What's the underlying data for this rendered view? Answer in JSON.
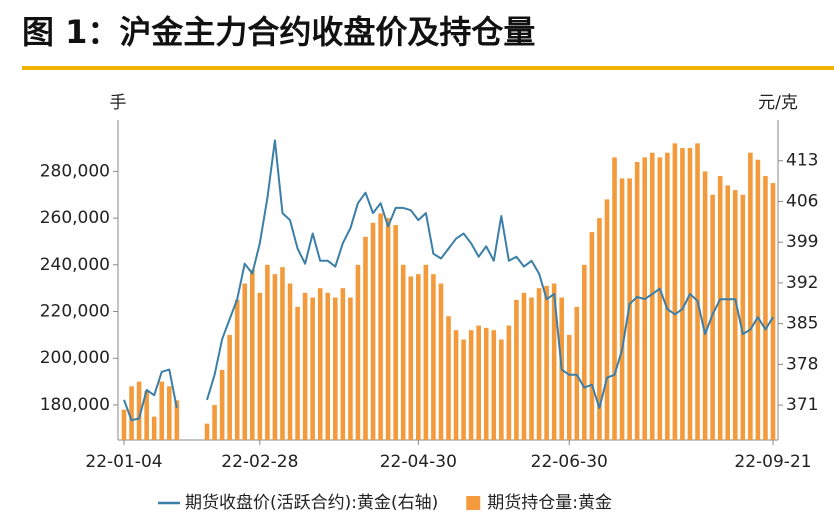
{
  "chart_data": {
    "type": "bar",
    "title": "图 1：沪金主力合约收盘价及持仓量",
    "y_label": "手",
    "y2_label": "元/克",
    "categories": [
      "22-01-04",
      null,
      null,
      null,
      null,
      null,
      null,
      null,
      null,
      null,
      null,
      null,
      null,
      null,
      null,
      null,
      null,
      null,
      "22-02-28",
      null,
      null,
      null,
      null,
      null,
      null,
      null,
      null,
      null,
      null,
      null,
      null,
      null,
      null,
      null,
      null,
      null,
      null,
      null,
      null,
      "22-04-30",
      null,
      null,
      null,
      null,
      null,
      null,
      null,
      null,
      null,
      null,
      null,
      null,
      null,
      null,
      null,
      null,
      null,
      null,
      null,
      "22-06-30",
      null,
      null,
      null,
      null,
      null,
      null,
      null,
      null,
      null,
      null,
      null,
      null,
      null,
      null,
      null,
      null,
      null,
      null,
      null,
      null,
      null,
      null,
      null,
      null,
      null,
      null,
      "22-09-21"
    ],
    "series": [
      {
        "name": "期货收盘价(活跃合约):黄金(右轴)",
        "type": "line",
        "axis": "y2",
        "color": "#3b7fa8",
        "values": [
          371.9,
          368.4,
          368.7,
          373.6,
          372.7,
          376.7,
          377.1,
          370.5,
          null,
          null,
          null,
          371.9,
          376.2,
          382.3,
          385.8,
          389.2,
          395.3,
          393.6,
          398.8,
          406.6,
          416.5,
          404.0,
          402.8,
          397.9,
          395.3,
          400.5,
          395.8,
          395.8,
          394.8,
          398.8,
          401.4,
          405.7,
          407.5,
          404.0,
          405.7,
          401.7,
          404.9,
          404.9,
          404.5,
          402.8,
          404.0,
          397.0,
          396.2,
          397.9,
          399.6,
          400.5,
          398.8,
          396.5,
          398.3,
          395.8,
          403.5,
          395.8,
          396.5,
          394.8,
          395.8,
          393.6,
          389.2,
          390.1,
          377.1,
          376.2,
          376.2,
          374.0,
          374.5,
          370.5,
          375.7,
          376.2,
          380.5,
          388.4,
          389.6,
          389.2,
          390.1,
          391.0,
          387.5,
          386.6,
          387.5,
          390.1,
          388.9,
          383.2,
          386.6,
          389.2,
          389.2,
          389.2,
          383.2,
          384.0,
          386.1,
          384.0,
          386.1
        ]
      },
      {
        "name": "期货持仓量:黄金",
        "type": "bar",
        "axis": "y",
        "color": "#f39b3c",
        "values": [
          178000,
          188000,
          190000,
          186000,
          175000,
          190000,
          188000,
          182000,
          null,
          null,
          null,
          172000,
          180000,
          195000,
          210000,
          225000,
          232000,
          238000,
          228000,
          240000,
          236000,
          239000,
          232000,
          222000,
          228000,
          226000,
          230000,
          228000,
          226000,
          230000,
          226000,
          240000,
          252000,
          258000,
          262000,
          260000,
          257000,
          240000,
          235000,
          236000,
          240000,
          236000,
          232000,
          218000,
          212000,
          208000,
          212000,
          214000,
          213000,
          212000,
          208000,
          214000,
          225000,
          228000,
          226000,
          230000,
          231000,
          232000,
          226000,
          210000,
          222000,
          240000,
          254000,
          260000,
          268000,
          286000,
          277000,
          277000,
          284000,
          286000,
          288000,
          286000,
          288000,
          292000,
          290000,
          290000,
          292000,
          280000,
          270000,
          278000,
          274000,
          272000,
          270000,
          288000,
          285000,
          278000,
          275000
        ]
      }
    ],
    "ylim": [
      165000,
      302000
    ],
    "yticks": [
      {
        "value": 180000,
        "label": "180,000"
      },
      {
        "value": 200000,
        "label": "200,000"
      },
      {
        "value": 220000,
        "label": "220,000"
      },
      {
        "value": 240000,
        "label": "240,000"
      },
      {
        "value": 260000,
        "label": "260,000"
      },
      {
        "value": 280000,
        "label": "280,000"
      }
    ],
    "y2lim": [
      365,
      420
    ],
    "y2ticks": [
      371,
      378,
      385,
      392,
      399,
      406,
      413
    ],
    "legend": "bottom"
  }
}
